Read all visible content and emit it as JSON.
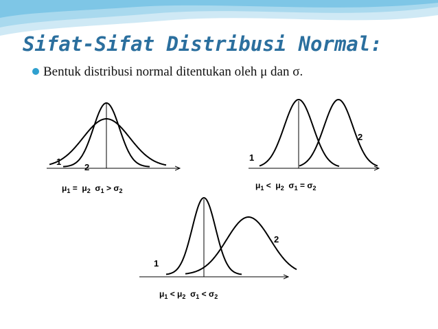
{
  "title": "Sifat-Sifat Distribusi Normal:",
  "bullet": "Bentuk distribusi normal ditentukan oleh μ dan σ.",
  "diagrams": [
    {
      "labels": [
        "1",
        "2"
      ],
      "caption": [
        "μ",
        "1",
        " =  μ",
        "2",
        "  σ",
        "1",
        " > σ",
        "2"
      ]
    },
    {
      "labels": [
        "1",
        "2"
      ],
      "caption": [
        "μ",
        "1",
        " <  μ",
        "2",
        "  σ",
        "1",
        " = σ",
        "2"
      ]
    },
    {
      "labels": [
        "1",
        "2"
      ],
      "caption": [
        "μ",
        "1",
        " < μ",
        "2",
        "  σ",
        "1",
        " < σ",
        "2"
      ]
    }
  ]
}
